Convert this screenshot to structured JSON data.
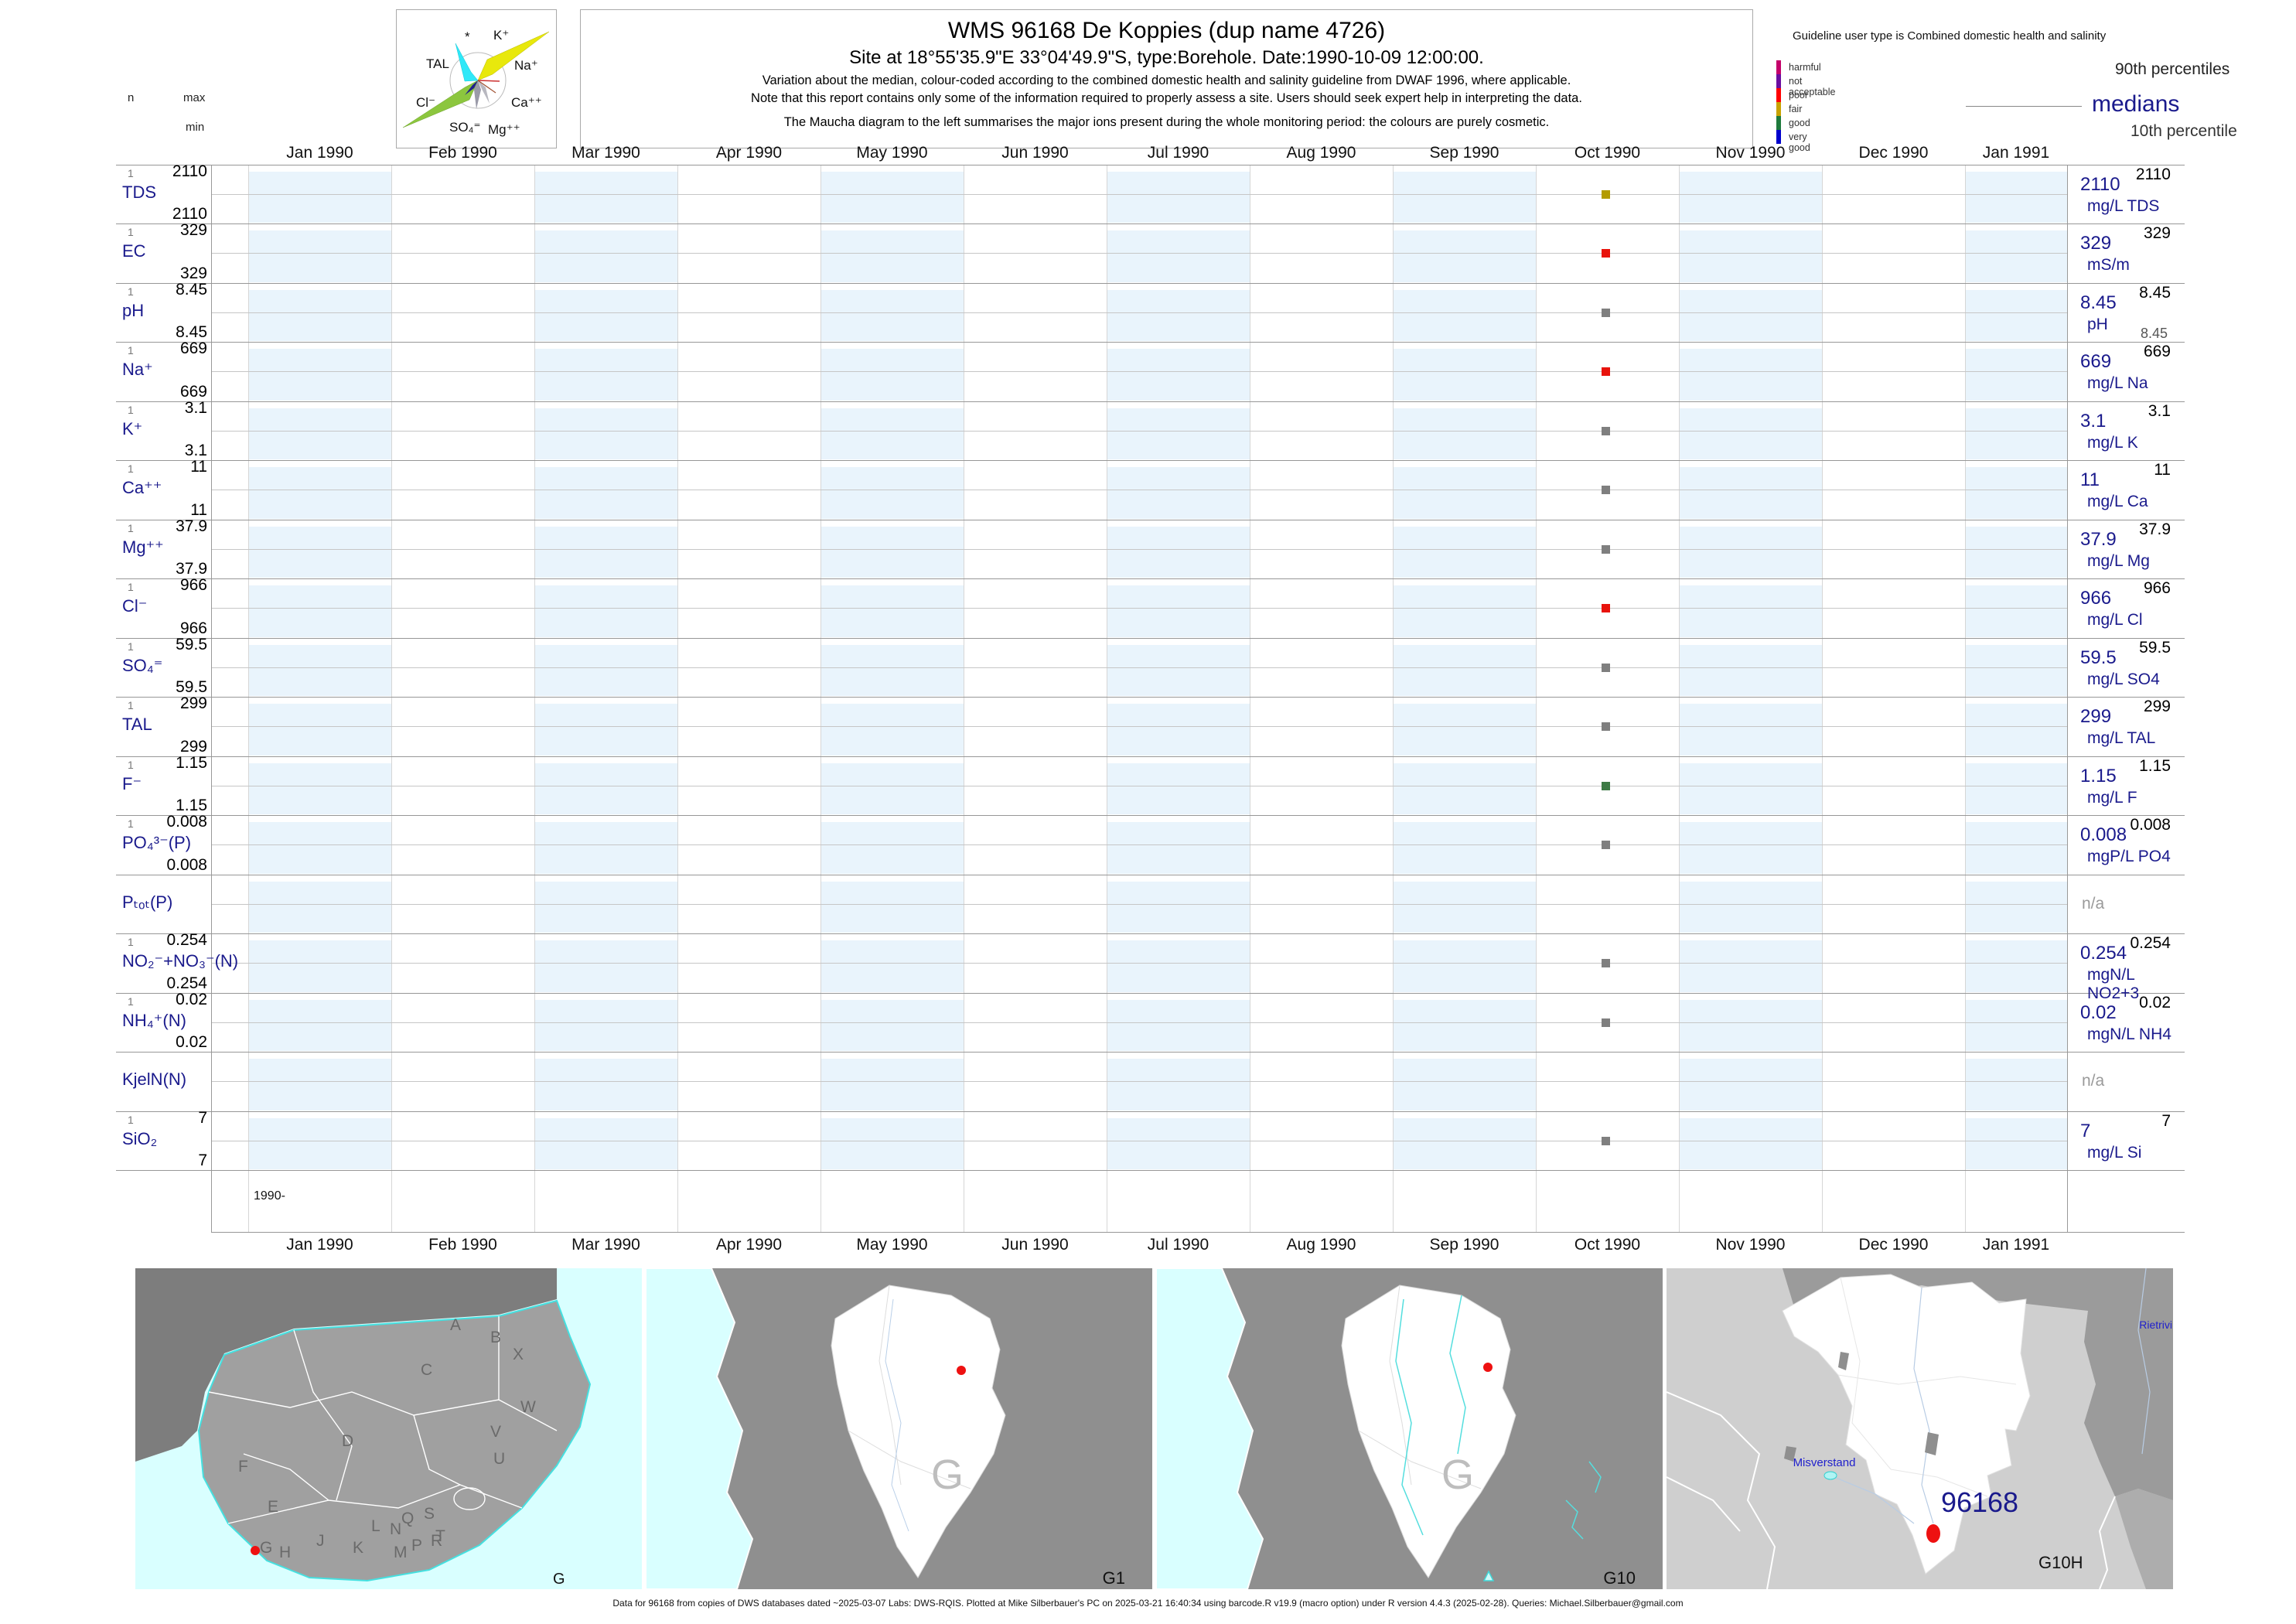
{
  "header": {
    "n_label": "n",
    "max_label": "max",
    "min_label": "min"
  },
  "title": {
    "line1": "WMS 96168  De Koppies (dup name 4726)",
    "line2": "Site at 18°55'35.9\"E 33°04'49.9\"S, type:Borehole. Date:1990-10-09 12:00:00.",
    "note1": "Variation about the median,  colour-coded according to the combined domestic health and salinity guideline from DWAF 1996, where applicable.",
    "note2": "Note that this report contains only some of the information required to properly assess a site. Users should seek expert help in interpreting the data.",
    "note3": "The Maucha diagram to the left summarises the major ions present during the whole monitoring period: the colours are purely cosmetic."
  },
  "legend": {
    "guideline": "Guideline user type is Combined domestic health and salinity",
    "classes": [
      {
        "label": "harmful",
        "color": "#C4006A"
      },
      {
        "label": "not acceptable",
        "color": "#6A0DA0"
      },
      {
        "label": "poor",
        "color": "#FF0000"
      },
      {
        "label": "fair",
        "color": "#C8A200"
      },
      {
        "label": "good",
        "color": "#1E7A3C"
      },
      {
        "label": "very good",
        "color": "#0000CC"
      }
    ],
    "p90_label": "90th percentiles",
    "median_label": "medians",
    "p10_label": "10th percentile",
    "median_color": "#1a1a8c"
  },
  "maucha": {
    "ions": [
      "*",
      "K⁺",
      "TAL",
      "Na⁺",
      "Cl⁻",
      "Ca⁺⁺",
      "SO₄⁼",
      "Mg⁺⁺"
    ]
  },
  "axis": {
    "year_tick": "1990-"
  },
  "chart_data": {
    "type": "line",
    "title": "WMS 96168 De Koppies (dup name 4726) — variation about the median per parameter",
    "x_range": [
      "Jan 1990",
      "Jan 1991"
    ],
    "sample_date": "1990-10-09 12:00:00",
    "months": [
      "Jan 1990",
      "Feb 1990",
      "Mar 1990",
      "Apr 1990",
      "May 1990",
      "Jun 1990",
      "Jul 1990",
      "Aug 1990",
      "Sep 1990",
      "Oct 1990",
      "Nov 1990",
      "Dec 1990",
      "Jan 1991"
    ],
    "legend_position": "top-right",
    "grid": "monthly columns, alternating light-blue shading",
    "rows": [
      {
        "param": "TDS",
        "n": "1",
        "max": "2110",
        "min": "2110",
        "p90": "2110",
        "median": "2110",
        "unit": "mg/L TDS",
        "status": "fair",
        "status_color": "#B39B00"
      },
      {
        "param": "EC",
        "n": "1",
        "max": "329",
        "min": "329",
        "p90": "329",
        "median": "329",
        "unit": "mS/m",
        "status": "poor",
        "status_color": "#E8130C"
      },
      {
        "param": "pH",
        "n": "1",
        "max": "8.45",
        "min": "8.45",
        "p90": "8.45",
        "median": "8.45",
        "p10": "8.45",
        "unit": "pH",
        "status": "none",
        "status_color": "#7F7F7F"
      },
      {
        "param": "Na⁺",
        "n": "1",
        "max": "669",
        "min": "669",
        "p90": "669",
        "median": "669",
        "unit": "mg/L Na",
        "status": "poor",
        "status_color": "#E8130C"
      },
      {
        "param": "K⁺",
        "n": "1",
        "max": "3.1",
        "min": "3.1",
        "p90": "3.1",
        "median": "3.1",
        "unit": "mg/L K",
        "status": "none",
        "status_color": "#7F7F7F"
      },
      {
        "param": "Ca⁺⁺",
        "n": "1",
        "max": "11",
        "min": "11",
        "p90": "11",
        "median": "11",
        "unit": "mg/L Ca",
        "status": "none",
        "status_color": "#7F7F7F"
      },
      {
        "param": "Mg⁺⁺",
        "n": "1",
        "max": "37.9",
        "min": "37.9",
        "p90": "37.9",
        "median": "37.9",
        "unit": "mg/L Mg",
        "status": "none",
        "status_color": "#7F7F7F"
      },
      {
        "param": "Cl⁻",
        "n": "1",
        "max": "966",
        "min": "966",
        "p90": "966",
        "median": "966",
        "unit": "mg/L Cl",
        "status": "poor",
        "status_color": "#E8130C"
      },
      {
        "param": "SO₄⁼",
        "n": "1",
        "max": "59.5",
        "min": "59.5",
        "p90": "59.5",
        "median": "59.5",
        "unit": "mg/L SO4",
        "status": "none",
        "status_color": "#7F7F7F"
      },
      {
        "param": "TAL",
        "n": "1",
        "max": "299",
        "min": "299",
        "p90": "299",
        "median": "299",
        "unit": "mg/L TAL",
        "status": "none",
        "status_color": "#7F7F7F"
      },
      {
        "param": "F⁻",
        "n": "1",
        "max": "1.15",
        "min": "1.15",
        "p90": "1.15",
        "median": "1.15",
        "unit": "mg/L F",
        "status": "good",
        "status_color": "#3D7A45"
      },
      {
        "param": "PO₄³⁻(P)",
        "n": "1",
        "max": "0.008",
        "min": "0.008",
        "p90": "0.008",
        "median": "0.008",
        "unit": "mgP/L PO4",
        "status": "none",
        "status_color": "#7F7F7F"
      },
      {
        "param": "Pₜₒₜ(P)",
        "na": "n/a"
      },
      {
        "param": "NO₂⁻+NO₃⁻(N)",
        "n": "1",
        "max": "0.254",
        "min": "0.254",
        "p90": "0.254",
        "median": "0.254",
        "unit": "mgN/L NO2+3",
        "status": "none",
        "status_color": "#7F7F7F"
      },
      {
        "param": "NH₄⁺(N)",
        "n": "1",
        "max": "0.02",
        "min": "0.02",
        "p90": "0.02",
        "median": "0.02",
        "unit": "mgN/L NH4",
        "status": "none",
        "status_color": "#7F7F7F"
      },
      {
        "param": "KjelN(N)",
        "na": "n/a"
      },
      {
        "param": "SiO₂",
        "n": "1",
        "max": "7",
        "min": "7",
        "p90": "7",
        "median": "7",
        "unit": "mg/L Si",
        "status": "none",
        "status_color": "#7F7F7F"
      }
    ]
  },
  "maps": {
    "panels": [
      {
        "label": "G",
        "region_letters": [
          "A",
          "B",
          "X",
          "C",
          "W",
          "D",
          "V",
          "U",
          "F",
          "E",
          "Q",
          "S",
          "T",
          "L",
          "N",
          "R",
          "J",
          "K",
          "M",
          "P",
          "G",
          "H"
        ]
      },
      {
        "label": "G1",
        "big_letter": "G"
      },
      {
        "label": "G10",
        "big_letter": "G"
      },
      {
        "label": "G10H",
        "site_label": "96168",
        "place_label_1": "Misverstand",
        "place_label_2": "Rietrivi"
      }
    ]
  },
  "footer": {
    "text": "Data for 96168 from copies of DWS databases dated ~2025-03-07 Labs: DWS-RQIS. Plotted at Mike Silberbauer's PC on 2025-03-21 16:40:34 using barcode.R v19.9 (macro option) under R version 4.4.3 (2025-02-28). Queries: Michael.Silberbauer@gmail.com"
  }
}
